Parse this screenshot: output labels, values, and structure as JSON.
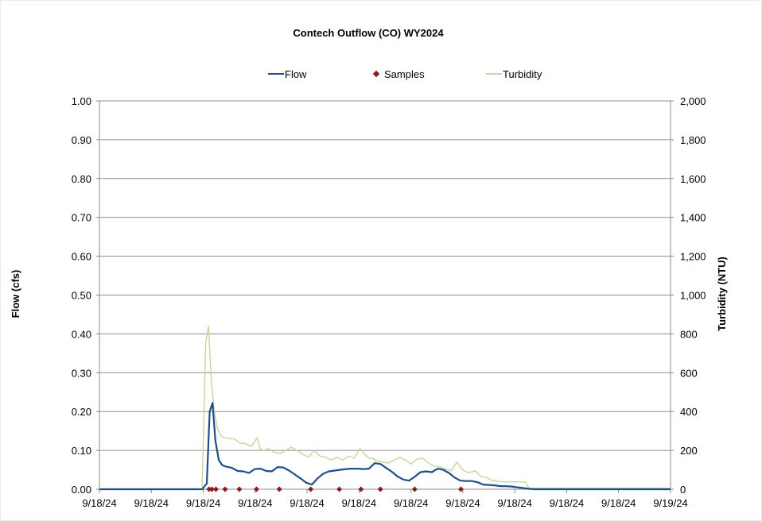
{
  "chart_data": {
    "type": "line",
    "title": "Contech Outflow (CO) WY2024",
    "ylabel_left": "Flow (cfs)",
    "ylabel_right": "Turbidity (NTU)",
    "ylim_left": [
      0,
      1
    ],
    "ylim_right": [
      0,
      2000
    ],
    "grid": true,
    "legend_position": "top",
    "y_ticks_left": [
      "0.00",
      "0.10",
      "0.20",
      "0.30",
      "0.40",
      "0.50",
      "0.60",
      "0.70",
      "0.80",
      "0.90",
      "1.00"
    ],
    "y_ticks_right": [
      "0",
      "200",
      "400",
      "600",
      "800",
      "1,000",
      "1,200",
      "1,400",
      "1,600",
      "1,800",
      "2,000"
    ],
    "x_ticks": [
      "9/18/24",
      "9/18/24",
      "9/18/24",
      "9/18/24",
      "9/18/24",
      "9/18/24",
      "9/18/24",
      "9/18/24",
      "9/18/24",
      "9/18/24",
      "9/18/24",
      "9/19/24"
    ],
    "xlim": [
      0,
      1
    ],
    "series": [
      {
        "name": "Flow",
        "color": "#1f4e8c",
        "axis": "left",
        "x": [
          0,
          0.18,
          0.188,
          0.193,
          0.198,
          0.203,
          0.209,
          0.215,
          0.222,
          0.232,
          0.242,
          0.252,
          0.262,
          0.272,
          0.282,
          0.292,
          0.302,
          0.312,
          0.322,
          0.332,
          0.342,
          0.352,
          0.362,
          0.372,
          0.382,
          0.392,
          0.402,
          0.412,
          0.422,
          0.432,
          0.442,
          0.452,
          0.462,
          0.472,
          0.482,
          0.492,
          0.502,
          0.512,
          0.522,
          0.532,
          0.542,
          0.552,
          0.562,
          0.572,
          0.582,
          0.592,
          0.602,
          0.612,
          0.622,
          0.632,
          0.642,
          0.652,
          0.662,
          0.672,
          0.682,
          0.692,
          0.702,
          0.712,
          0.722,
          0.732,
          0.742,
          0.752,
          0.762,
          0.772,
          1
        ],
        "y": [
          0,
          0,
          0.015,
          0.2,
          0.222,
          0.125,
          0.075,
          0.062,
          0.058,
          0.055,
          0.047,
          0.046,
          0.042,
          0.052,
          0.053,
          0.047,
          0.046,
          0.057,
          0.056,
          0.048,
          0.038,
          0.028,
          0.017,
          0.012,
          0.028,
          0.04,
          0.046,
          0.048,
          0.05,
          0.052,
          0.053,
          0.053,
          0.052,
          0.053,
          0.067,
          0.065,
          0.055,
          0.045,
          0.033,
          0.025,
          0.022,
          0.032,
          0.044,
          0.046,
          0.044,
          0.053,
          0.05,
          0.042,
          0.03,
          0.022,
          0.021,
          0.021,
          0.018,
          0.012,
          0.011,
          0.01,
          0.008,
          0.008,
          0.007,
          0.005,
          0.003,
          0.001,
          0,
          0,
          0
        ]
      },
      {
        "name": "Samples",
        "color": "#8b1a1a",
        "axis": "left",
        "marker": "diamond",
        "x": [
          0.192,
          0.197,
          0.204,
          0.22,
          0.245,
          0.275,
          0.315,
          0.37,
          0.42,
          0.458,
          0.492,
          0.552,
          0.633
        ],
        "y": [
          0,
          0,
          0,
          0,
          0,
          0,
          0,
          0,
          0,
          0,
          0,
          0,
          0
        ]
      },
      {
        "name": "Turbidity",
        "color": "#c3d69b",
        "axis": "right",
        "x": [
          0,
          0.18,
          0.186,
          0.191,
          0.196,
          0.201,
          0.207,
          0.213,
          0.219,
          0.226,
          0.236,
          0.246,
          0.256,
          0.266,
          0.276,
          0.282,
          0.288,
          0.296,
          0.306,
          0.316,
          0.326,
          0.336,
          0.346,
          0.356,
          0.366,
          0.376,
          0.386,
          0.396,
          0.406,
          0.416,
          0.426,
          0.436,
          0.446,
          0.456,
          0.466,
          0.472,
          0.478,
          0.486,
          0.496,
          0.506,
          0.516,
          0.526,
          0.536,
          0.546,
          0.556,
          0.566,
          0.576,
          0.586,
          0.596,
          0.606,
          0.616,
          0.626,
          0.636,
          0.646,
          0.652,
          0.658,
          0.668,
          0.678,
          0.688,
          0.698,
          0.708,
          0.718,
          0.728,
          0.738,
          0.746,
          0.752,
          1
        ],
        "y": [
          0,
          0,
          750,
          840,
          560,
          400,
          310,
          275,
          265,
          262,
          260,
          238,
          235,
          220,
          265,
          205,
          200,
          210,
          190,
          185,
          200,
          215,
          200,
          180,
          165,
          200,
          170,
          165,
          150,
          165,
          150,
          170,
          160,
          210,
          175,
          160,
          160,
          145,
          140,
          135,
          150,
          165,
          150,
          130,
          155,
          160,
          135,
          120,
          115,
          105,
          95,
          140,
          100,
          85,
          90,
          95,
          65,
          60,
          45,
          40,
          38,
          38,
          38,
          38,
          38,
          5,
          5
        ]
      }
    ]
  }
}
